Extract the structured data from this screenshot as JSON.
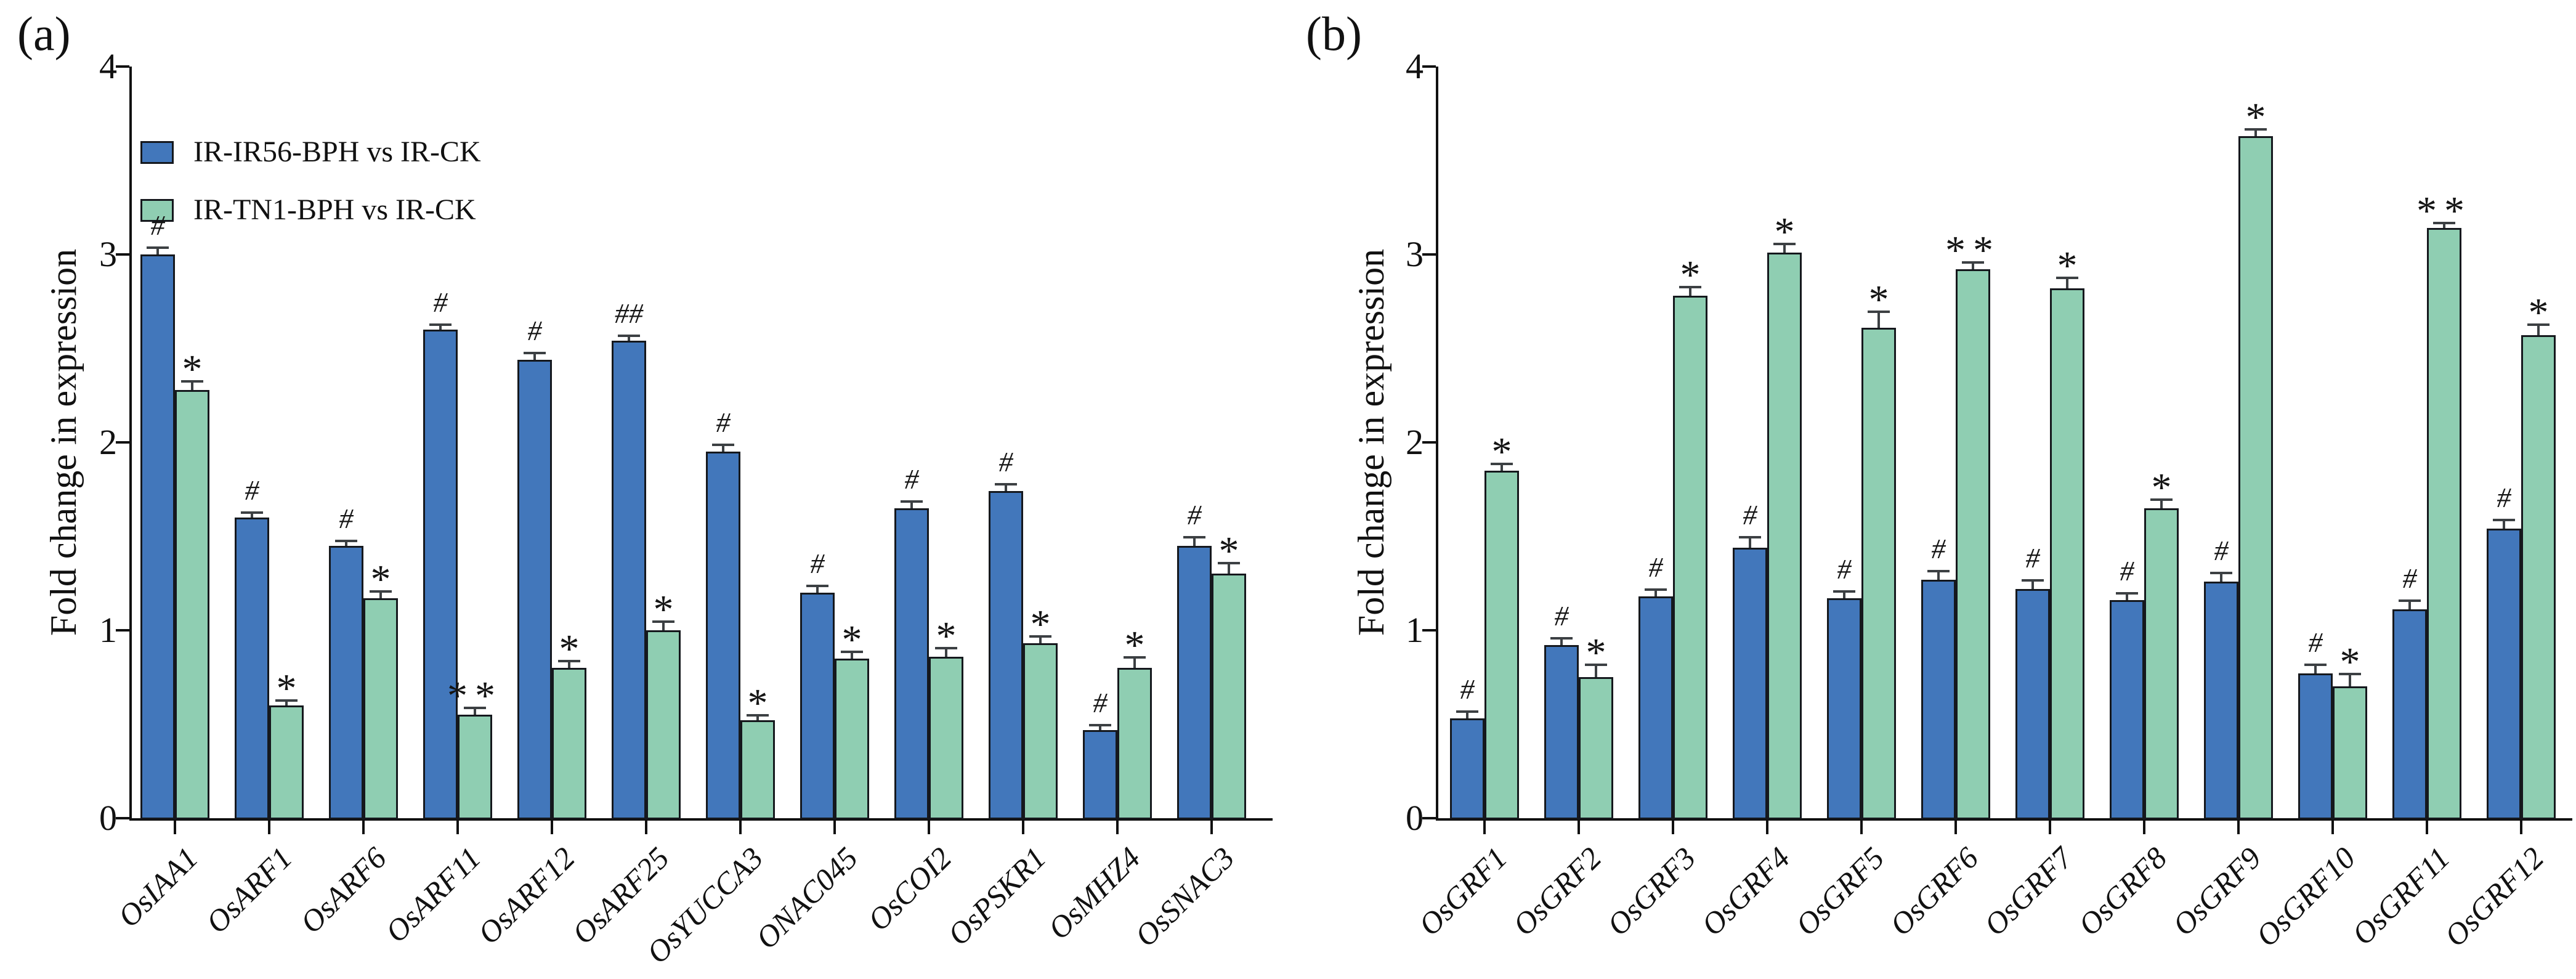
{
  "figure": {
    "panel_a_label": "(a)",
    "panel_b_label": "(b)",
    "y_axis_label": "Fold change in expression",
    "y_ticks": [
      "0",
      "1",
      "2",
      "3",
      "4"
    ],
    "background": "#ffffff",
    "axis_color": "#111111",
    "error_bar_color": "#3c4043"
  },
  "legend": {
    "items": [
      {
        "label": "IR-IR56-BPH vs IR-CK",
        "color": "#4277bb"
      },
      {
        "label": "IR-TN1-BPH vs IR-CK",
        "color": "#8fceb2"
      }
    ]
  },
  "chart_data": [
    {
      "type": "bar",
      "panel": "a",
      "title": "",
      "xlabel": "",
      "ylabel": "Fold change in expression",
      "ylim": [
        0,
        4
      ],
      "grid": false,
      "legend_position": "upper-left",
      "categories": [
        "OsIAA1",
        "OsARF1",
        "OsARF6",
        "OsARF11",
        "OsARF12",
        "OsARF25",
        "OsYUCCA3",
        "ONAC045",
        "OsCOI2",
        "OsPSKR1",
        "OsMHZ4",
        "OsSNAC3"
      ],
      "series": [
        {
          "name": "IR-IR56-BPH vs IR-CK",
          "color": "#4277bb",
          "values": [
            3.0,
            1.6,
            1.45,
            2.6,
            2.44,
            2.54,
            1.95,
            1.2,
            1.65,
            1.74,
            0.47,
            1.45
          ],
          "errors": [
            0.03,
            0.02,
            0.02,
            0.02,
            0.03,
            0.02,
            0.03,
            0.03,
            0.03,
            0.03,
            0.02,
            0.04
          ],
          "annotations": [
            "#",
            "#",
            "#",
            "#",
            "#",
            "##",
            "#",
            "#",
            "#",
            "#",
            "#",
            "#"
          ]
        },
        {
          "name": "IR-TN1-BPH vs IR-CK",
          "color": "#8fceb2",
          "values": [
            2.28,
            0.6,
            1.17,
            0.55,
            0.8,
            1.0,
            0.52,
            0.85,
            0.86,
            0.93,
            0.8,
            1.3
          ],
          "errors": [
            0.04,
            0.02,
            0.03,
            0.03,
            0.03,
            0.04,
            0.02,
            0.03,
            0.04,
            0.03,
            0.05,
            0.05
          ],
          "annotations": [
            "*",
            "*",
            "*",
            "**",
            "*",
            "*",
            "*",
            "*",
            "*",
            "*",
            "*",
            "*"
          ]
        }
      ]
    },
    {
      "type": "bar",
      "panel": "b",
      "title": "",
      "xlabel": "",
      "ylabel": "Fold change in expression",
      "ylim": [
        0,
        4
      ],
      "grid": false,
      "legend_position": "none",
      "categories": [
        "OsGRF1",
        "OsGRF2",
        "OsGRF3",
        "OsGRF4",
        "OsGRF5",
        "OsGRF6",
        "OsGRF7",
        "OsGRF8",
        "OsGRF9",
        "OsGRF10",
        "OsGRF11",
        "OsGRF12"
      ],
      "series": [
        {
          "name": "IR-IR56-BPH vs IR-CK",
          "color": "#4277bb",
          "values": [
            0.53,
            0.92,
            1.18,
            1.44,
            1.17,
            1.27,
            1.22,
            1.16,
            1.26,
            0.77,
            1.11,
            1.54
          ],
          "errors": [
            0.03,
            0.03,
            0.03,
            0.05,
            0.03,
            0.04,
            0.04,
            0.03,
            0.04,
            0.04,
            0.04,
            0.04
          ],
          "annotations": [
            "#",
            "#",
            "#",
            "#",
            "#",
            "#",
            "#",
            "#",
            "#",
            "#",
            "#",
            "#"
          ]
        },
        {
          "name": "IR-TN1-BPH vs IR-CK",
          "color": "#8fceb2",
          "values": [
            1.85,
            0.75,
            2.78,
            3.01,
            2.61,
            2.92,
            2.82,
            1.65,
            3.63,
            0.7,
            3.14,
            2.57
          ],
          "errors": [
            0.03,
            0.06,
            0.04,
            0.04,
            0.08,
            0.03,
            0.05,
            0.04,
            0.03,
            0.06,
            0.02,
            0.05
          ],
          "annotations": [
            "*",
            "*",
            "*",
            "*",
            "*",
            "**",
            "*",
            "*",
            "*",
            "*",
            "**",
            "*"
          ]
        }
      ]
    }
  ]
}
